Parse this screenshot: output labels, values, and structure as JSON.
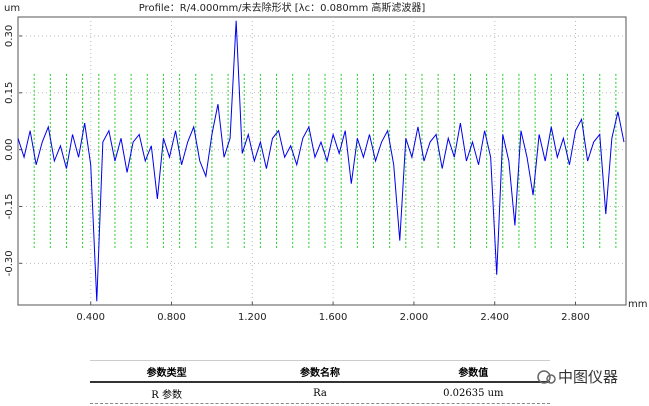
{
  "chart_data": {
    "type": "line",
    "title": "Profile：R/4.000mm/未去除形状 [λc：0.080mm 高斯滤波器]",
    "y_label": "um",
    "x_label": "mm",
    "x": [
      0.04,
      0.07,
      0.1,
      0.13,
      0.16,
      0.19,
      0.22,
      0.25,
      0.28,
      0.31,
      0.34,
      0.37,
      0.4,
      0.43,
      0.46,
      0.49,
      0.52,
      0.55,
      0.58,
      0.61,
      0.64,
      0.67,
      0.7,
      0.73,
      0.76,
      0.79,
      0.82,
      0.85,
      0.88,
      0.91,
      0.94,
      0.97,
      1,
      1.03,
      1.06,
      1.09,
      1.12,
      1.15,
      1.18,
      1.21,
      1.24,
      1.27,
      1.3,
      1.33,
      1.36,
      1.39,
      1.42,
      1.45,
      1.48,
      1.51,
      1.54,
      1.57,
      1.6,
      1.63,
      1.66,
      1.69,
      1.72,
      1.75,
      1.78,
      1.81,
      1.84,
      1.87,
      1.9,
      1.93,
      1.96,
      1.99,
      2.02,
      2.05,
      2.08,
      2.11,
      2.14,
      2.17,
      2.2,
      2.23,
      2.26,
      2.29,
      2.32,
      2.35,
      2.38,
      2.41,
      2.44,
      2.47,
      2.5,
      2.53,
      2.56,
      2.59,
      2.62,
      2.65,
      2.68,
      2.71,
      2.74,
      2.77,
      2.8,
      2.83,
      2.86,
      2.89,
      2.92,
      2.95,
      2.98,
      3.01,
      3.04
    ],
    "values": [
      0.03,
      -0.02,
      0.05,
      -0.04,
      0.02,
      0.06,
      -0.03,
      0.01,
      -0.05,
      0.04,
      -0.02,
      0.07,
      -0.04,
      -0.4,
      0.02,
      0.05,
      -0.03,
      0.03,
      -0.06,
      0.02,
      0.04,
      -0.03,
      0.01,
      -0.13,
      0.03,
      -0.02,
      0.05,
      -0.04,
      0.02,
      0.06,
      -0.03,
      -0.07,
      0.04,
      0.12,
      -0.02,
      0.03,
      0.34,
      -0.01,
      0.04,
      -0.03,
      0.02,
      -0.05,
      0.03,
      0.05,
      -0.02,
      0.01,
      -0.04,
      0.03,
      0.06,
      -0.02,
      0.02,
      -0.03,
      0.04,
      -0.01,
      0.05,
      -0.09,
      0.03,
      -0.02,
      0.04,
      -0.03,
      0.02,
      0.05,
      -0.04,
      -0.24,
      0.03,
      -0.02,
      0.06,
      -0.03,
      0.02,
      0.04,
      -0.05,
      0.03,
      -0.02,
      0.07,
      -0.03,
      0.02,
      -0.04,
      0.05,
      -0.02,
      -0.33,
      0.04,
      -0.03,
      -0.2,
      0.05,
      -0.02,
      -0.12,
      0.04,
      -0.03,
      0.06,
      -0.02,
      0.03,
      -0.04,
      0.05,
      0.08,
      -0.03,
      0.02,
      0.04,
      -0.17,
      0.03,
      0.1,
      0.02
    ],
    "color": "#0000ee",
    "xlim": [
      0.04,
      3.05
    ],
    "ylim": [
      -0.41,
      0.35
    ],
    "xticks": [
      {
        "value": 0.4,
        "label": "0.400"
      },
      {
        "value": 0.8,
        "label": "0.800"
      },
      {
        "value": 1.2,
        "label": "1.200"
      },
      {
        "value": 1.6,
        "label": "1.600"
      },
      {
        "value": 2.0,
        "label": "2.000"
      },
      {
        "value": 2.4,
        "label": "2.400"
      },
      {
        "value": 2.8,
        "label": "2.800"
      }
    ],
    "yticks": [
      {
        "value": -0.3,
        "label": "-0.30"
      },
      {
        "value": -0.15,
        "label": "-0.15"
      },
      {
        "value": 0,
        "label": "0.00"
      },
      {
        "value": 0.15,
        "label": "0.15"
      },
      {
        "value": 0.3,
        "label": "0.30"
      }
    ],
    "grid": true,
    "cutoff_x": [
      0.12,
      0.2,
      0.28,
      0.36,
      0.44,
      0.52,
      0.6,
      0.68,
      0.76,
      0.84,
      0.92,
      1,
      1.08,
      1.16,
      1.24,
      1.32,
      1.4,
      1.48,
      1.56,
      1.64,
      1.72,
      1.8,
      1.88,
      1.96,
      2.04,
      2.12,
      2.2,
      2.28,
      2.36,
      2.44,
      2.52,
      2.6,
      2.68,
      2.76,
      2.84,
      2.92,
      3
    ],
    "cutoff_ylim": [
      -0.26,
      0.2
    ],
    "cutoff_color": "#22cc22"
  },
  "table": {
    "header": [
      "参数类型",
      "参数名称",
      "参数值"
    ],
    "rows": [
      [
        "R 参数",
        "Ra",
        "0.02635 um"
      ]
    ]
  },
  "watermark": "中图仪器"
}
